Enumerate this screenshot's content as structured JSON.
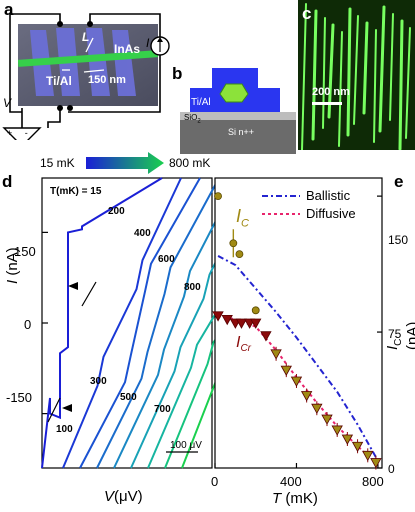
{
  "panels": {
    "a": {
      "letter": "a",
      "labels": {
        "L": "L",
        "InAs": "InAs",
        "TiAl": "Ti/Al",
        "dist": "150 nm",
        "I": "I",
        "V": "V"
      }
    },
    "b": {
      "letter": "b",
      "labels": {
        "TiAl": "Ti/Al",
        "SiO2": "SiO",
        "SiO2_sub": "2",
        "Si": "Si n++"
      }
    },
    "c": {
      "letter": "c",
      "scale": "200 nm"
    },
    "d": {
      "letter": "d",
      "gradient_left": "15 mK",
      "gradient_right": "800 mK",
      "ylabel_italic": "I",
      "ylabel_unit": " (nA)",
      "xlabel_italic": "V",
      "xlabel_unit": "(μV)",
      "scale_bar": "100 μV",
      "temp_header": "T(mK) = 15",
      "curve_labels": [
        "200",
        "400",
        "600",
        "800",
        "300",
        "500",
        "700",
        "100"
      ],
      "yticks": [
        "150",
        "0",
        "-150"
      ]
    },
    "e": {
      "letter": "e",
      "ylabel": "I",
      "ylabel_sub": "C",
      "ylabel_unit": " (nA)",
      "xlabel_italic": "T",
      "xlabel_unit": " (mK)",
      "ic_label": "I",
      "ic_sub": "C",
      "icr_label": "I",
      "icr_sub": "Cr",
      "legend": [
        "Ballistic",
        "Diffusive"
      ]
    }
  },
  "chart_data": [
    {
      "type": "line",
      "panel": "d",
      "xlabel": "V(μV)",
      "ylabel": "I (nA)",
      "ylim": [
        -240,
        240
      ],
      "yticks": [
        150,
        0,
        -150
      ],
      "series": [
        {
          "name": "15",
          "color": "#1a1fd6"
        },
        {
          "name": "100",
          "color": "#1a38d6"
        },
        {
          "name": "200",
          "color": "#1a52d2"
        },
        {
          "name": "300",
          "color": "#1a6ccc"
        },
        {
          "name": "400",
          "color": "#1a88c4"
        },
        {
          "name": "500",
          "color": "#18a2b6"
        },
        {
          "name": "600",
          "color": "#16b5a0"
        },
        {
          "name": "700",
          "color": "#16c37e"
        },
        {
          "name": "800",
          "color": "#1ad04e"
        }
      ]
    },
    {
      "type": "scatter",
      "panel": "e",
      "xlabel": "T (mK)",
      "ylabel": "I_C (nA)",
      "xlim": [
        0,
        820
      ],
      "ylim": [
        0,
        160
      ],
      "xticks": [
        0,
        400,
        800
      ],
      "yticks": [
        0,
        75,
        150
      ],
      "legend_position": "top-right",
      "series": [
        {
          "name": "I_C",
          "color": "#a08a14",
          "x": [
            15,
            90,
            120,
            200
          ],
          "y": [
            150,
            124,
            118,
            87
          ]
        },
        {
          "name": "I_Cr",
          "color": "#8b0a0a",
          "x": [
            15,
            60,
            100,
            130,
            170,
            200,
            250,
            300,
            350,
            400,
            450,
            500,
            550,
            600,
            650,
            700,
            750,
            790
          ],
          "y": [
            84,
            82,
            80,
            80,
            80,
            80,
            73,
            63,
            54,
            48,
            40,
            33,
            27,
            21,
            16,
            12,
            7,
            3
          ]
        },
        {
          "name": "Ballistic",
          "color": "#2424d0",
          "x": [
            15,
            100,
            200,
            300,
            400,
            500,
            600,
            700,
            790
          ],
          "y": [
            117,
            112,
            99,
            86,
            72,
            57,
            42,
            24,
            6
          ]
        },
        {
          "name": "Diffusive",
          "color": "#e8246c",
          "x": [
            15,
            100,
            200,
            300,
            400,
            500,
            600,
            700,
            790
          ],
          "y": [
            84,
            82,
            78,
            65,
            50,
            36,
            23,
            12,
            3
          ]
        }
      ]
    }
  ]
}
